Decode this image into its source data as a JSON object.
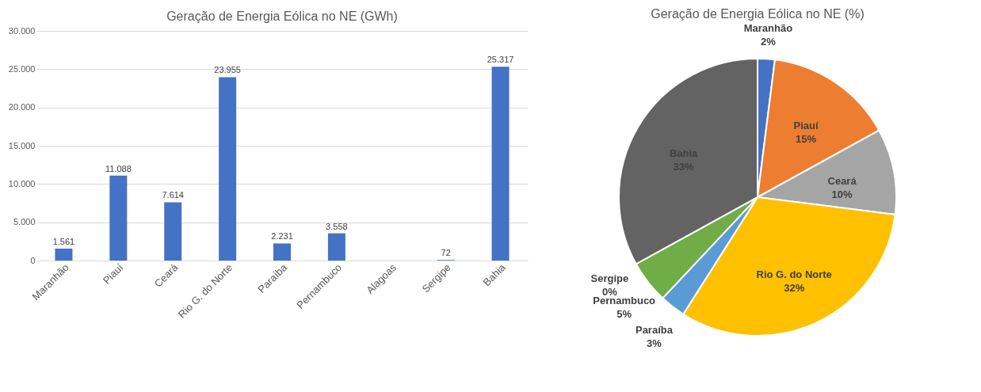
{
  "chart_data": [
    {
      "type": "bar",
      "title": "Geração de Energia Eólica no NE (GWh)",
      "categories": [
        "Maranhão",
        "Piauí",
        "Ceará",
        "Rio G. do Norte",
        "Paraíba",
        "Pernambuco",
        "Alagoas",
        "Sergipe",
        "Bahia"
      ],
      "values": [
        1561,
        11088,
        7614,
        23955,
        2231,
        3558,
        null,
        72,
        25317
      ],
      "value_labels": [
        "1.561",
        "11.088",
        "7.614",
        "23.955",
        "2.231",
        "3.558",
        null,
        "72",
        "25.317"
      ],
      "color": "#4472c4",
      "ylim": [
        0,
        30000
      ],
      "yticks": [
        {
          "value": 0,
          "label": "0"
        },
        {
          "value": 5000,
          "label": "5.000"
        },
        {
          "value": 10000,
          "label": "10.000"
        },
        {
          "value": 15000,
          "label": "15.000"
        },
        {
          "value": 20000,
          "label": "20.000"
        },
        {
          "value": 25000,
          "label": "25.000"
        },
        {
          "value": 30000,
          "label": "30.000"
        }
      ],
      "grid": "y"
    },
    {
      "type": "pie",
      "title": "Geração de Energia Eólica no NE (%)",
      "categories": [
        "Maranhão",
        "Piauí",
        "Ceará",
        "Rio G. do Norte",
        "Paraíba",
        "Pernambuco",
        "Sergipe",
        "Bahia"
      ],
      "values": [
        2,
        15,
        10,
        32,
        3,
        5,
        0,
        33
      ],
      "value_labels": [
        "2%",
        "15%",
        "10%",
        "32%",
        "3%",
        "5%",
        "0%",
        "33%"
      ],
      "colors": [
        "#4472c4",
        "#ed7d31",
        "#a5a5a5",
        "#ffc000",
        "#5b9bd5",
        "#70ad47",
        "#264478",
        "#636363"
      ]
    }
  ]
}
